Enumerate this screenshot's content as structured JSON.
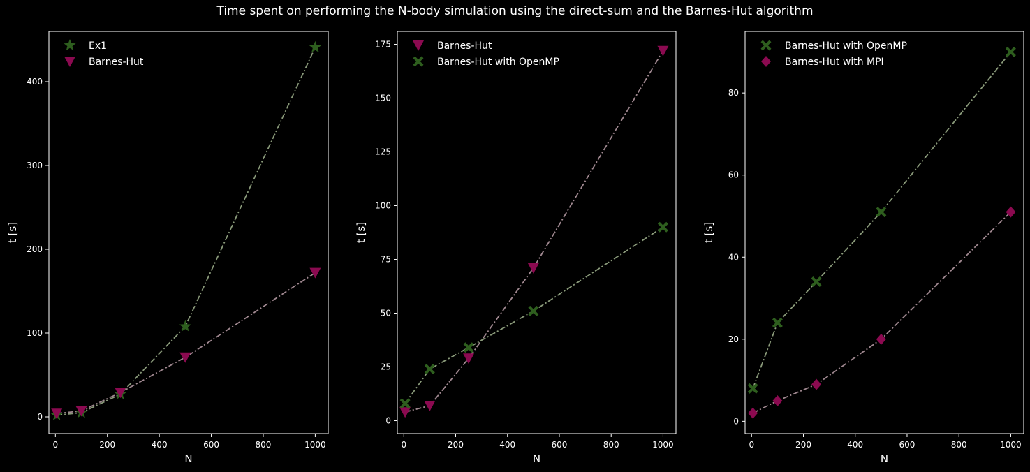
{
  "figure": {
    "title": "Time spent on performing the N-body simulation using the direct-sum and the Barnes-Hut algorithm"
  },
  "colors": {
    "background": "#000000",
    "axes": "#ffffff",
    "green_marker": "#2e5e1e",
    "green_line": "#8a9a7a",
    "magenta_marker": "#8b0a50",
    "magenta_line": "#a08890"
  },
  "chart_data": [
    {
      "type": "line",
      "xlabel": "N",
      "ylabel": "t [s]",
      "xlim": [
        -25,
        1050
      ],
      "ylim": [
        -20,
        460
      ],
      "xticks": [
        0,
        200,
        400,
        600,
        800,
        1000
      ],
      "yticks": [
        0,
        100,
        200,
        300,
        400
      ],
      "legend_position": "top-left",
      "x": [
        5,
        100,
        250,
        500,
        1000
      ],
      "series": [
        {
          "name": "Ex1",
          "marker": "star",
          "color": "green",
          "values": [
            2,
            5,
            27,
            108,
            441
          ]
        },
        {
          "name": "Barnes-Hut",
          "marker": "triangle-down",
          "color": "magenta",
          "values": [
            4,
            7,
            29,
            71,
            172
          ]
        }
      ]
    },
    {
      "type": "line",
      "xlabel": "N",
      "ylabel": "t [s]",
      "xlim": [
        -25,
        1050
      ],
      "ylim": [
        -6,
        181
      ],
      "xticks": [
        0,
        200,
        400,
        600,
        800,
        1000
      ],
      "yticks": [
        0,
        25,
        50,
        75,
        100,
        125,
        150,
        175
      ],
      "legend_position": "top-left",
      "x": [
        5,
        100,
        250,
        500,
        1000
      ],
      "series": [
        {
          "name": "Barnes-Hut",
          "marker": "triangle-down",
          "color": "magenta",
          "values": [
            4,
            7,
            29,
            71,
            172
          ]
        },
        {
          "name": "Barnes-Hut with OpenMP",
          "marker": "x-filled",
          "color": "green",
          "values": [
            8,
            24,
            34,
            51,
            90
          ]
        }
      ]
    },
    {
      "type": "line",
      "xlabel": "N",
      "ylabel": "t [s]",
      "xlim": [
        -25,
        1050
      ],
      "ylim": [
        -3,
        95
      ],
      "xticks": [
        0,
        200,
        400,
        600,
        800,
        1000
      ],
      "yticks": [
        0,
        20,
        40,
        60,
        80
      ],
      "legend_position": "top-left",
      "x": [
        5,
        100,
        250,
        500,
        1000
      ],
      "series": [
        {
          "name": "Barnes-Hut with OpenMP",
          "marker": "x-filled",
          "color": "green",
          "values": [
            8,
            24,
            34,
            51,
            90
          ]
        },
        {
          "name": "Barnes-Hut with MPI",
          "marker": "diamond",
          "color": "magenta",
          "values": [
            2,
            5,
            9,
            20,
            51
          ]
        }
      ]
    }
  ]
}
